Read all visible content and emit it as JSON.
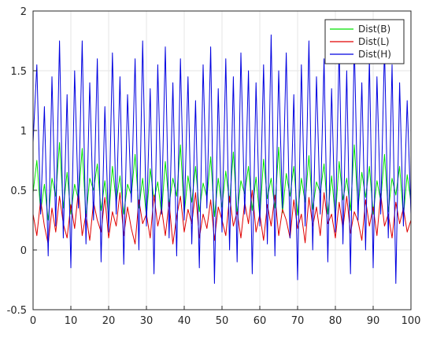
{
  "chart_data": {
    "type": "line",
    "title": "",
    "xlabel": "",
    "ylabel": "",
    "xlim": [
      0,
      100
    ],
    "ylim": [
      -0.5,
      2
    ],
    "xticks": [
      0,
      10,
      20,
      30,
      40,
      50,
      60,
      70,
      80,
      90,
      100
    ],
    "yticks": [
      -0.5,
      0,
      0.5,
      1,
      1.5,
      2
    ],
    "grid": true,
    "legend_position": "top-right",
    "series": [
      {
        "name": "Dist(B)",
        "color": "#00e000",
        "x": [
          0,
          1,
          2,
          3,
          4,
          5,
          6,
          7,
          8,
          9,
          10,
          11,
          12,
          13,
          14,
          15,
          16,
          17,
          18,
          19,
          20,
          21,
          22,
          23,
          24,
          25,
          26,
          27,
          28,
          29,
          30,
          31,
          32,
          33,
          34,
          35,
          36,
          37,
          38,
          39,
          40,
          41,
          42,
          43,
          44,
          45,
          46,
          47,
          48,
          49,
          50,
          51,
          52,
          53,
          54,
          55,
          56,
          57,
          58,
          59,
          60,
          61,
          62,
          63,
          64,
          65,
          66,
          67,
          68,
          69,
          70,
          71,
          72,
          73,
          74,
          75,
          76,
          77,
          78,
          79,
          80,
          81,
          82,
          83,
          84,
          85,
          86,
          87,
          88,
          89,
          90,
          91,
          92,
          93,
          94,
          95,
          96,
          97,
          98,
          99,
          100
        ],
        "values": [
          0.48,
          0.75,
          0.32,
          0.55,
          0.25,
          0.6,
          0.45,
          0.9,
          0.35,
          0.65,
          0.3,
          0.55,
          0.42,
          0.85,
          0.28,
          0.6,
          0.5,
          0.72,
          0.33,
          0.58,
          0.27,
          0.7,
          0.4,
          0.62,
          0.3,
          0.55,
          0.46,
          0.8,
          0.35,
          0.6,
          0.28,
          0.68,
          0.42,
          0.57,
          0.3,
          0.74,
          0.38,
          0.6,
          0.45,
          0.88,
          0.3,
          0.62,
          0.4,
          0.7,
          0.32,
          0.56,
          0.44,
          0.78,
          0.28,
          0.6,
          0.36,
          0.66,
          0.4,
          0.82,
          0.3,
          0.58,
          0.47,
          0.7,
          0.33,
          0.61,
          0.27,
          0.76,
          0.43,
          0.6,
          0.35,
          0.86,
          0.31,
          0.64,
          0.45,
          0.7,
          0.29,
          0.6,
          0.4,
          0.79,
          0.34,
          0.57,
          0.48,
          0.72,
          0.3,
          0.62,
          0.27,
          0.74,
          0.42,
          0.6,
          0.33,
          0.88,
          0.36,
          0.65,
          0.44,
          0.7,
          0.3,
          0.58,
          0.41,
          0.8,
          0.32,
          0.6,
          0.46,
          0.7,
          0.28,
          0.63,
          0.4
        ]
      },
      {
        "name": "Dist(L)",
        "color": "#e00000",
        "x": [
          0,
          1,
          2,
          3,
          4,
          5,
          6,
          7,
          8,
          9,
          10,
          11,
          12,
          13,
          14,
          15,
          16,
          17,
          18,
          19,
          20,
          21,
          22,
          23,
          24,
          25,
          26,
          27,
          28,
          29,
          30,
          31,
          32,
          33,
          34,
          35,
          36,
          37,
          38,
          39,
          40,
          41,
          42,
          43,
          44,
          45,
          46,
          47,
          48,
          49,
          50,
          51,
          52,
          53,
          54,
          55,
          56,
          57,
          58,
          59,
          60,
          61,
          62,
          63,
          64,
          65,
          66,
          67,
          68,
          69,
          70,
          71,
          72,
          73,
          74,
          75,
          76,
          77,
          78,
          79,
          80,
          81,
          82,
          83,
          84,
          85,
          86,
          87,
          88,
          89,
          90,
          91,
          92,
          93,
          94,
          95,
          96,
          97,
          98,
          99,
          100
        ],
        "values": [
          0.3,
          0.12,
          0.42,
          0.2,
          0.05,
          0.35,
          0.15,
          0.45,
          0.22,
          0.1,
          0.38,
          0.18,
          0.5,
          0.12,
          0.3,
          0.08,
          0.4,
          0.25,
          0.15,
          0.44,
          0.1,
          0.32,
          0.2,
          0.48,
          0.12,
          0.36,
          0.18,
          0.05,
          0.42,
          0.22,
          0.3,
          0.1,
          0.46,
          0.2,
          0.35,
          0.12,
          0.4,
          0.05,
          0.28,
          0.45,
          0.15,
          0.34,
          0.22,
          0.48,
          0.1,
          0.3,
          0.18,
          0.42,
          0.08,
          0.36,
          0.25,
          0.12,
          0.45,
          0.2,
          0.32,
          0.1,
          0.4,
          0.22,
          0.5,
          0.15,
          0.3,
          0.08,
          0.38,
          0.2,
          0.46,
          0.12,
          0.34,
          0.25,
          0.1,
          0.42,
          0.18,
          0.3,
          0.06,
          0.44,
          0.2,
          0.36,
          0.12,
          0.48,
          0.22,
          0.3,
          0.1,
          0.4,
          0.18,
          0.45,
          0.14,
          0.32,
          0.24,
          0.08,
          0.42,
          0.2,
          0.36,
          0.12,
          0.47,
          0.2,
          0.3,
          0.1,
          0.4,
          0.22,
          0.35,
          0.15,
          0.25
        ]
      },
      {
        "name": "Dist(H)",
        "color": "#0000e0",
        "x": [
          0,
          1,
          2,
          3,
          4,
          5,
          6,
          7,
          8,
          9,
          10,
          11,
          12,
          13,
          14,
          15,
          16,
          17,
          18,
          19,
          20,
          21,
          22,
          23,
          24,
          25,
          26,
          27,
          28,
          29,
          30,
          31,
          32,
          33,
          34,
          35,
          36,
          37,
          38,
          39,
          40,
          41,
          42,
          43,
          44,
          45,
          46,
          47,
          48,
          49,
          50,
          51,
          52,
          53,
          54,
          55,
          56,
          57,
          58,
          59,
          60,
          61,
          62,
          63,
          64,
          65,
          66,
          67,
          68,
          69,
          70,
          71,
          72,
          73,
          74,
          75,
          76,
          77,
          78,
          79,
          80,
          81,
          82,
          83,
          84,
          85,
          86,
          87,
          88,
          89,
          90,
          91,
          92,
          93,
          94,
          95,
          96,
          97,
          98,
          99,
          100
        ],
        "values": [
          0.9,
          1.55,
          0.3,
          1.2,
          -0.05,
          1.45,
          0.2,
          1.75,
          0.1,
          1.3,
          -0.15,
          1.5,
          0.35,
          1.75,
          0.05,
          1.4,
          0.25,
          1.6,
          -0.1,
          1.2,
          0.15,
          1.65,
          0.3,
          1.45,
          -0.12,
          1.3,
          0.4,
          1.6,
          0.0,
          1.75,
          0.2,
          1.35,
          -0.2,
          1.55,
          0.3,
          1.7,
          0.1,
          1.4,
          -0.05,
          1.6,
          0.25,
          1.45,
          0.05,
          1.25,
          -0.15,
          1.55,
          0.35,
          1.7,
          -0.28,
          1.35,
          0.15,
          1.6,
          0.0,
          1.45,
          -0.1,
          1.65,
          0.3,
          1.5,
          -0.2,
          1.4,
          0.2,
          1.55,
          0.05,
          1.8,
          -0.05,
          1.5,
          0.35,
          1.65,
          0.1,
          1.3,
          -0.25,
          1.55,
          0.2,
          1.75,
          0.0,
          1.45,
          0.3,
          1.6,
          -0.1,
          1.35,
          0.15,
          1.7,
          0.05,
          1.5,
          -0.2,
          1.75,
          0.25,
          1.4,
          0.0,
          1.6,
          -0.15,
          1.45,
          0.3,
          1.7,
          0.1,
          1.55,
          -0.28,
          1.4,
          0.2,
          1.25,
          0.3
        ]
      }
    ]
  }
}
